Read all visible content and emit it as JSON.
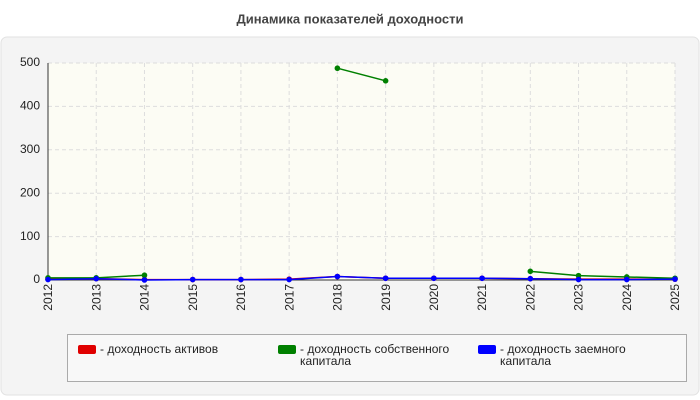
{
  "chart_data": {
    "type": "line",
    "title": "Динамика показателей доходности",
    "categories": [
      "2012",
      "2013",
      "2014",
      "2015",
      "2016",
      "2017",
      "2018",
      "2019",
      "2020",
      "2021",
      "2022",
      "2023",
      "2024",
      "2025"
    ],
    "series": [
      {
        "name": "- доходность активов",
        "color": "#e00000",
        "values": [
          2,
          3,
          1,
          1,
          1,
          2,
          8,
          4,
          4,
          4,
          3,
          2,
          2,
          2
        ]
      },
      {
        "name": "- доходность собственного капитала",
        "color": "#008000",
        "values": [
          5,
          5,
          11,
          null,
          null,
          null,
          488,
          459,
          null,
          null,
          20,
          10,
          7,
          4
        ]
      },
      {
        "name": "- доходность заемного капитала",
        "color": "#0000ff",
        "values": [
          1,
          3,
          0,
          1,
          1,
          1,
          8,
          4,
          4,
          4,
          3,
          1,
          1,
          2
        ]
      }
    ],
    "ylim": [
      0,
      500
    ],
    "yticks": [
      0,
      100,
      200,
      300,
      400,
      500
    ],
    "grid": true
  }
}
